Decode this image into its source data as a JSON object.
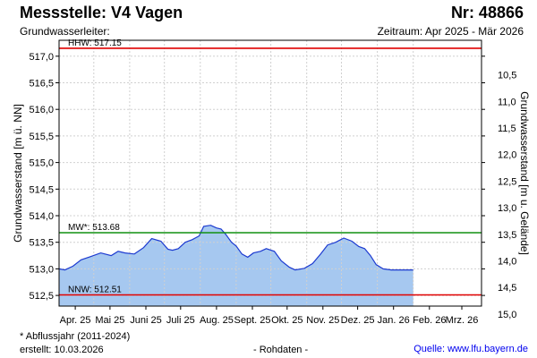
{
  "header": {
    "title": "Messstelle: V4 Vagen",
    "number": "Nr: 48866",
    "aquifer_label": "Grundwasserleiter:",
    "period": "Zeitraum: Apr 2025 - Mär 2026"
  },
  "footer": {
    "footnote": "* Abflussjahr (2011-2024)",
    "created": "erstellt:  10.03.2026",
    "raw": "- Rohdaten -",
    "source": "Quelle: www.lfu.bayern.de"
  },
  "colors": {
    "fill": "#a6c8f0",
    "line": "#1c3ad0",
    "extreme": "#e00000",
    "mean": "#109010"
  },
  "chart_data": {
    "type": "area",
    "ylabel_left": "Grundwasserstand [m ü. NN]",
    "ylabel_right": "Grundwasserstand [m u. Gelände]",
    "ylim": [
      512.3,
      517.3
    ],
    "right_axis_ref": 527.15,
    "grid": true,
    "y_ticks_left": [
      "512,5",
      "513,0",
      "513,5",
      "514,0",
      "514,5",
      "515,0",
      "515,5",
      "516,0",
      "516,5",
      "517,0"
    ],
    "y_ticks_right": [
      "10,5",
      "11,0",
      "11,5",
      "12,0",
      "12,5",
      "13,0",
      "13,5",
      "14,0",
      "14,5",
      "15,0"
    ],
    "x_range": [
      "2025-04-01",
      "2026-04-01"
    ],
    "x_ticks": [
      {
        "label": "Apr. 25",
        "date": "2025-04-15"
      },
      {
        "label": "Mai 25",
        "date": "2025-05-15"
      },
      {
        "label": "Juni 25",
        "date": "2025-06-15"
      },
      {
        "label": "Juli 25",
        "date": "2025-07-15"
      },
      {
        "label": "Aug. 25",
        "date": "2025-08-15"
      },
      {
        "label": "Sept. 25",
        "date": "2025-09-15"
      },
      {
        "label": "Okt. 25",
        "date": "2025-10-15"
      },
      {
        "label": "Nov. 25",
        "date": "2025-11-15"
      },
      {
        "label": "Dez. 25",
        "date": "2025-12-15"
      },
      {
        "label": "Jan. 26",
        "date": "2026-01-15"
      },
      {
        "label": "Feb. 26",
        "date": "2026-02-15"
      },
      {
        "label": "Mrz. 26",
        "date": "2026-03-15"
      }
    ],
    "reference_lines": [
      {
        "label": "HHW: 517.15",
        "value": 517.15,
        "color": "#e00000"
      },
      {
        "label": "MW*: 513.68",
        "value": 513.68,
        "color": "#109010"
      },
      {
        "label": "NNW: 512.51",
        "value": 512.51,
        "color": "#e00000"
      }
    ],
    "series": [
      {
        "dates": [
          "2025-04-01",
          "2025-04-06",
          "2025-04-13",
          "2025-04-20",
          "2025-04-28",
          "2025-05-07",
          "2025-05-16",
          "2025-05-22",
          "2025-05-28",
          "2025-06-05",
          "2025-06-13",
          "2025-06-20",
          "2025-06-28",
          "2025-07-04",
          "2025-07-08",
          "2025-07-13",
          "2025-07-19",
          "2025-07-25",
          "2025-07-31",
          "2025-08-04",
          "2025-08-10",
          "2025-08-15",
          "2025-08-19",
          "2025-08-23",
          "2025-08-28",
          "2025-09-01",
          "2025-09-06",
          "2025-09-11",
          "2025-09-16",
          "2025-09-22",
          "2025-09-27",
          "2025-10-04",
          "2025-10-10",
          "2025-10-17",
          "2025-10-22",
          "2025-10-30",
          "2025-11-06",
          "2025-11-13",
          "2025-11-19",
          "2025-11-26",
          "2025-12-03",
          "2025-12-10",
          "2025-12-16",
          "2025-12-21",
          "2025-12-26",
          "2025-12-31",
          "2026-01-06",
          "2026-01-13",
          "2026-01-20",
          "2026-01-25",
          "2026-02-01"
        ],
        "values": [
          513.0,
          512.98,
          513.05,
          513.17,
          513.23,
          513.3,
          513.25,
          513.33,
          513.3,
          513.28,
          513.4,
          513.57,
          513.52,
          513.37,
          513.35,
          513.38,
          513.5,
          513.55,
          513.62,
          513.8,
          513.82,
          513.77,
          513.75,
          513.65,
          513.5,
          513.43,
          513.28,
          513.22,
          513.3,
          513.33,
          513.38,
          513.33,
          513.15,
          513.03,
          512.98,
          513.01,
          513.1,
          513.28,
          513.45,
          513.5,
          513.58,
          513.52,
          513.42,
          513.38,
          513.25,
          513.08,
          513.0,
          512.98,
          512.98,
          512.98,
          512.98
        ]
      }
    ]
  }
}
